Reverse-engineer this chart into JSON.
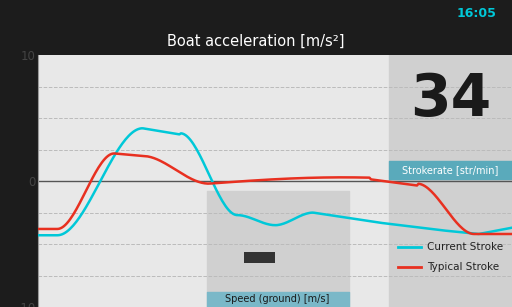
{
  "title": "Boat acceleration [m/s²]",
  "title_bar_color": "#2d8fa5",
  "title_text_color": "#ffffff",
  "bg_color": "#1c1c1c",
  "plot_bg_color": "#e8e8e8",
  "ylim": [
    -10,
    10
  ],
  "grid_color": "#bbbbbb",
  "cyan_color": "#00c8d8",
  "red_color": "#e83020",
  "strokerate_label": "Strokerate [str/min]",
  "strokerate_value": "34",
  "speed_label": "Speed (ground) [m/s]",
  "legend_current": "Current Stroke",
  "legend_typical": "Typical Stroke",
  "gray_rect_color": "#d0d0d0",
  "speed_label_bg": "#7ab8c8",
  "strokerate_bg": "#d0d0d0",
  "strokerate_label_bar": "#5aaabb",
  "status_bar_color": "#1a1a1a",
  "time_color": "#00c8d8",
  "zero_line_color": "#555555",
  "tick_color": "#444444"
}
